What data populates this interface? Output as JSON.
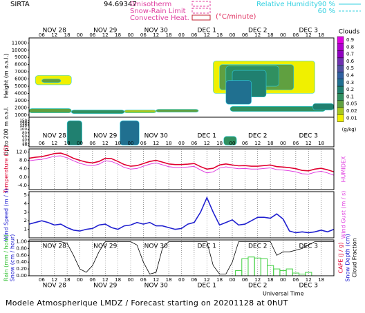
{
  "header": {
    "station": "SIRTA",
    "coord": "94.69347",
    "isotherm": "0misotherm",
    "snow_rain": "Snow-Rain Limit",
    "convective": "Convective Heat.",
    "convective_unit": "(°C/minute)",
    "rh_title": "Relative Humidity",
    "rh_levels": [
      "90 %",
      "60 %"
    ]
  },
  "time": {
    "xlim": [
      0,
      144
    ],
    "xlabel": "Universal Time",
    "xticks": [
      {
        "value": 6,
        "label": "06"
      },
      {
        "value": 12,
        "label": "12"
      },
      {
        "value": 18,
        "label": "18"
      },
      {
        "value": 24,
        "label": "00"
      },
      {
        "value": 30,
        "label": "06"
      },
      {
        "value": 36,
        "label": "12"
      },
      {
        "value": 42,
        "label": "18"
      },
      {
        "value": 48,
        "label": "00"
      },
      {
        "value": 54,
        "label": "06"
      },
      {
        "value": 60,
        "label": "12"
      },
      {
        "value": 66,
        "label": "18"
      },
      {
        "value": 72,
        "label": "00"
      },
      {
        "value": 78,
        "label": "06"
      },
      {
        "value": 84,
        "label": "12"
      },
      {
        "value": 90,
        "label": "18"
      },
      {
        "value": 96,
        "label": "00"
      },
      {
        "value": 102,
        "label": "06"
      },
      {
        "value": 108,
        "label": "12"
      },
      {
        "value": 114,
        "label": "18"
      },
      {
        "value": 120,
        "label": "00"
      },
      {
        "value": 126,
        "label": "06"
      },
      {
        "value": 132,
        "label": "12"
      },
      {
        "value": 138,
        "label": "18"
      }
    ],
    "days": [
      {
        "value": 12,
        "label": "NOV 28"
      },
      {
        "value": 36,
        "label": "NOV 29"
      },
      {
        "value": 60,
        "label": "NOV 30"
      },
      {
        "value": 84,
        "label": "DEC  1"
      },
      {
        "value": 108,
        "label": "DEC  2"
      },
      {
        "value": 132,
        "label": "DEC  3"
      }
    ],
    "x": [
      0,
      3,
      6,
      9,
      12,
      15,
      18,
      21,
      24,
      27,
      30,
      33,
      36,
      39,
      42,
      45,
      48,
      51,
      54,
      57,
      60,
      63,
      66,
      69,
      72,
      75,
      78,
      81,
      84,
      87,
      90,
      93,
      96,
      99,
      102,
      105,
      108,
      111,
      114,
      117,
      120,
      123,
      126,
      129,
      132,
      135,
      138,
      141,
      144
    ]
  },
  "chart_data": [
    {
      "type": "heatmap",
      "ylabel": "Height (m a.s.l.)",
      "ylabel2": "Up to 200 m a.s.l.",
      "ylim": [
        700,
        11700
      ],
      "yticks": [
        1000,
        2000,
        3000,
        4000,
        5000,
        6000,
        7000,
        8000,
        9000,
        10000,
        11000
      ],
      "y2lim": [
        0,
        170
      ],
      "y2ticks": [
        10,
        20,
        40,
        60,
        80,
        100,
        120,
        130,
        140,
        150
      ],
      "colorbar_title": "Clouds",
      "colorbar_unit": "(g/kg)",
      "levels": [
        0.9,
        0.8,
        0.7,
        0.6,
        0.5,
        0.4,
        0.3,
        0.2,
        0.1,
        0.05,
        0.02,
        0.01
      ],
      "colors": [
        "#e000e0",
        "#b000d0",
        "#9000c0",
        "#7030b0",
        "#5050a0",
        "#3060a0",
        "#207090",
        "#208070",
        "#309060",
        "#60a040",
        "#a8c820",
        "#f0f000"
      ],
      "cells": [
        [
          0,
          20,
          1300,
          1900,
          0.05
        ],
        [
          20,
          45,
          1200,
          1700,
          0.1
        ],
        [
          45,
          60,
          1300,
          1700,
          0.02
        ],
        [
          60,
          80,
          1400,
          1800,
          0.05
        ],
        [
          95,
          140,
          1500,
          2200,
          0.1
        ],
        [
          134,
          144,
          1700,
          2600,
          0.2
        ],
        [
          3,
          20,
          5200,
          6500,
          0.01
        ],
        [
          6,
          15,
          5500,
          6000,
          0.05
        ],
        [
          87,
          135,
          4000,
          8500,
          0.01
        ],
        [
          90,
          125,
          4500,
          8000,
          0.05
        ],
        [
          93,
          118,
          5000,
          7800,
          0.1
        ],
        [
          96,
          112,
          3500,
          7200,
          0.2
        ],
        [
          93,
          105,
          2500,
          5800,
          0.3
        ]
      ],
      "cells_low": [
        [
          18,
          25,
          10,
          150,
          0.2
        ],
        [
          43,
          52,
          10,
          150,
          0.3
        ],
        [
          92,
          98,
          10,
          60,
          0.1
        ]
      ]
    },
    {
      "type": "line",
      "ylabel": "Temperature (°C)",
      "ylabel_right": "HUMIDEX",
      "ylim": [
        -6,
        13.5
      ],
      "yticks": [
        {
          "value": 12,
          "label": "12.0"
        },
        {
          "value": 8,
          "label": "8.0"
        },
        {
          "value": 4,
          "label": "4.0"
        },
        {
          "value": 0,
          "label": "0.0"
        },
        {
          "value": -4,
          "label": "-4.0"
        }
      ],
      "series": [
        {
          "name": "Temperature",
          "color": "#e00030",
          "values": [
            9.0,
            9.5,
            9.8,
            10.5,
            11.3,
            11.5,
            10.5,
            9.0,
            8.0,
            7.2,
            6.8,
            7.5,
            9.0,
            8.8,
            7.5,
            6.0,
            5.2,
            5.5,
            6.5,
            7.5,
            8.0,
            7.2,
            6.3,
            6.0,
            6.0,
            6.2,
            6.5,
            5.0,
            3.8,
            4.2,
            5.8,
            6.3,
            5.8,
            5.4,
            5.5,
            5.2,
            5.2,
            5.5,
            5.8,
            5.0,
            4.8,
            4.5,
            4.0,
            3.2,
            3.0,
            3.8,
            4.2,
            3.5,
            2.5
          ]
        },
        {
          "name": "HUMIDEX",
          "color": "#e040e0",
          "values": [
            7.8,
            8.2,
            8.5,
            9.2,
            10.0,
            10.2,
            9.2,
            7.8,
            6.6,
            5.8,
            5.4,
            6.2,
            7.8,
            7.5,
            6.2,
            4.6,
            3.8,
            4.1,
            5.2,
            6.2,
            6.8,
            5.9,
            5.0,
            4.6,
            4.6,
            4.8,
            5.1,
            3.4,
            2.0,
            2.5,
            4.3,
            4.9,
            4.4,
            4.0,
            4.1,
            3.8,
            3.8,
            4.1,
            4.4,
            3.6,
            3.4,
            3.0,
            2.5,
            1.6,
            1.4,
            2.3,
            2.8,
            2.0,
            0.9
          ]
        }
      ]
    },
    {
      "type": "line",
      "ylabel": "Wind Speed (m / s)",
      "ylabel_right": "Wind Gust (m / s)",
      "ylim": [
        0,
        5.4
      ],
      "yticks": [
        1,
        2,
        3,
        4,
        5
      ],
      "series": [
        {
          "name": "Wind Speed",
          "color": "#2020d0",
          "values": [
            1.6,
            1.8,
            2.0,
            1.8,
            1.5,
            1.6,
            1.2,
            0.9,
            0.8,
            1.0,
            1.1,
            1.5,
            1.6,
            1.2,
            1.0,
            1.4,
            1.5,
            1.8,
            1.6,
            1.8,
            1.4,
            1.4,
            1.2,
            1.0,
            1.1,
            1.6,
            1.8,
            3.0,
            4.7,
            3.0,
            1.5,
            1.8,
            2.1,
            1.5,
            1.6,
            2.0,
            2.4,
            2.4,
            2.3,
            2.8,
            2.2,
            0.8,
            0.6,
            0.7,
            0.6,
            0.7,
            0.9,
            0.7,
            1.0
          ]
        }
      ]
    },
    {
      "type": "bar_line",
      "ylabel": "Rain (mm / hour)",
      "ylabel2": "Snow (cm / hour)",
      "right_labels": [
        "CAPE (J / g)",
        "Snow Depth (cm)",
        "Cloud Fraction"
      ],
      "ylim": [
        0,
        1.05
      ],
      "yticks": [
        {
          "value": 1,
          "label": "1.00"
        },
        {
          "value": 0.8,
          "label": "0.80"
        },
        {
          "value": 0.6,
          "label": "0.60"
        },
        {
          "value": 0.4,
          "label": "0.40"
        },
        {
          "value": 0.2,
          "label": "0.20"
        },
        {
          "value": 0,
          "label": "0.00"
        }
      ],
      "series": [
        {
          "name": "Rain",
          "color": "#40d040",
          "values": [
            0,
            0,
            0,
            0,
            0,
            0,
            0,
            0,
            0,
            0,
            0,
            0,
            0,
            0,
            0,
            0,
            0,
            0,
            0,
            0,
            0,
            0,
            0,
            0,
            0,
            0,
            0,
            0,
            0,
            0,
            0,
            0,
            0,
            0.15,
            0.5,
            0.55,
            0.52,
            0.5,
            0.3,
            0.2,
            0.15,
            0.2,
            0.08,
            0.05,
            0.1,
            0,
            0,
            0,
            0
          ]
        },
        {
          "name": "Cloud Fraction",
          "color": "#000000",
          "values": [
            1,
            1,
            1,
            1,
            1,
            1,
            0.95,
            0.6,
            0.2,
            0.1,
            0.3,
            0.7,
            1,
            1,
            1,
            1,
            1,
            0.9,
            0.4,
            0.05,
            0.1,
            0.8,
            1,
            1,
            1,
            1,
            1,
            1,
            1,
            0.3,
            0.05,
            0.05,
            0.4,
            1,
            1,
            1,
            1,
            1,
            1,
            0.6,
            0.7,
            0.7,
            0.75,
            0.8,
            0.9,
            1,
            1,
            1,
            1
          ]
        }
      ]
    }
  ],
  "footer": "Modele Atmospherique LMDZ / Forecast starting on 20201128 at 0hUT"
}
